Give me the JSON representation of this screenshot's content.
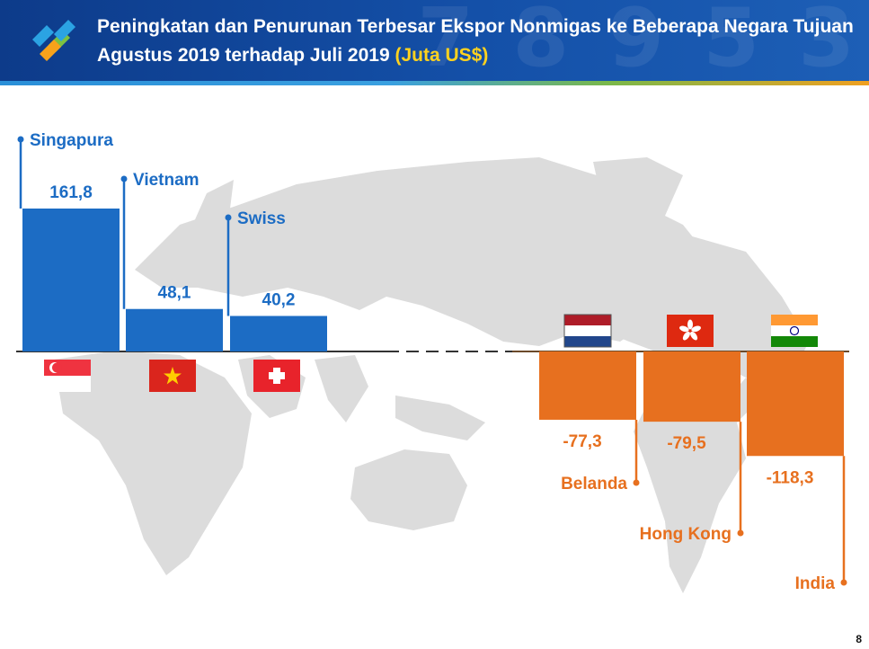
{
  "header": {
    "title_line1": "Peningkatan dan Penurunan Terbesar Ekspor Nonmigas ke Beberapa Negara Tujuan",
    "title_line2": "Agustus 2019 terhadap Juli 2019",
    "unit": "(Juta US$)",
    "page_number": "8"
  },
  "colors": {
    "increase": "#1c6cc4",
    "decrease": "#e7701f",
    "header": "#1450a8",
    "map": "#dcdcdc"
  },
  "chart_data": {
    "type": "bar",
    "title": "Peningkatan dan Penurunan Terbesar Ekspor Nonmigas ke Beberapa Negara Tujuan Agustus 2019 terhadap Juli 2019 (Juta US$)",
    "categories": [
      "Singapura",
      "Vietnam",
      "Swiss",
      "Belanda",
      "Hong Kong",
      "India"
    ],
    "values": [
      161.8,
      48.1,
      40.2,
      -77.3,
      -79.5,
      -118.3
    ],
    "value_labels": [
      "161,8",
      "48,1",
      "40,2",
      "-77,3",
      "-79,5",
      "-118,3"
    ],
    "flags": [
      "singapore-flag",
      "vietnam-flag",
      "switzerland-flag",
      "netherlands-flag",
      "hong-kong-flag",
      "india-flag"
    ],
    "background": "world-map"
  }
}
